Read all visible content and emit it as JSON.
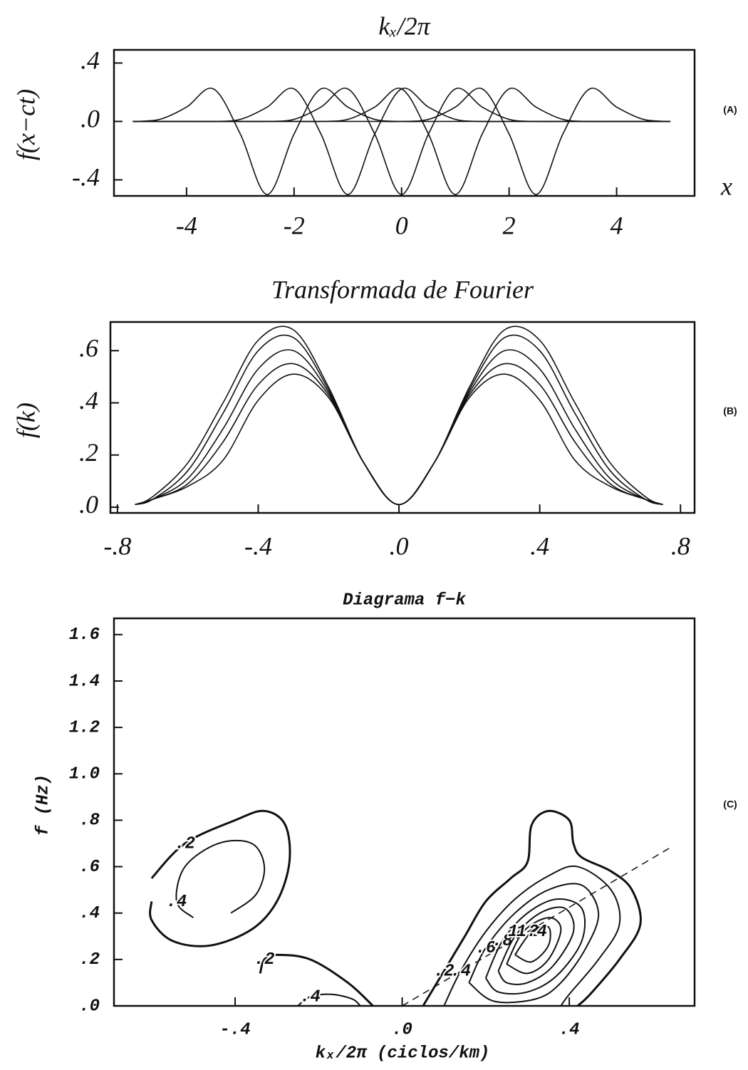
{
  "chart_data": [
    {
      "type": "line",
      "title": "kₓ/2π",
      "x_label": "x",
      "y_label": "f(x−ct)",
      "panel_label": "(A)",
      "color": "#111",
      "x": [
        -5,
        -4.5,
        -4,
        -3.5,
        -3,
        -2.5,
        -2,
        -1.5,
        -1,
        -0.5,
        0,
        0.5,
        1,
        1.5,
        2,
        2.5,
        3,
        3.5,
        4,
        4.5,
        5
      ],
      "series": [
        {
          "values": [
            0,
            0.014,
            0.098,
            0.223,
            -0.086,
            -0.5,
            -0.086,
            0.223,
            0.098,
            0.014,
            0,
            0,
            0,
            0,
            0,
            0,
            0,
            0,
            0,
            0,
            0
          ]
        },
        {
          "values": [
            0,
            0,
            0,
            0,
            0.014,
            0.098,
            0.223,
            -0.086,
            -0.5,
            -0.086,
            0.223,
            0.098,
            0.014,
            0,
            0,
            0,
            0,
            0,
            0,
            0,
            0
          ]
        },
        {
          "values": [
            0,
            0,
            0,
            0,
            0,
            0,
            0.014,
            0.098,
            0.223,
            -0.086,
            -0.5,
            -0.086,
            0.223,
            0.098,
            0.014,
            0,
            0,
            0,
            0,
            0,
            0
          ]
        },
        {
          "values": [
            0,
            0,
            0,
            0,
            0,
            0,
            0,
            0,
            0.014,
            0.098,
            0.223,
            -0.086,
            -0.5,
            -0.086,
            0.223,
            0.098,
            0.014,
            0,
            0,
            0,
            0
          ]
        },
        {
          "values": [
            0,
            0,
            0,
            0,
            0,
            0,
            0,
            0,
            0,
            0,
            0,
            0.014,
            0.098,
            0.223,
            -0.086,
            -0.5,
            -0.086,
            0.223,
            0.098,
            0.014,
            0
          ]
        }
      ],
      "xlim": [
        -5.35,
        5.45
      ],
      "ylim": [
        -0.51,
        0.49
      ],
      "xticks": [
        -4,
        -2,
        0,
        2,
        4
      ],
      "yticks": [
        {
          "value": -0.4,
          "label": "-.4"
        },
        {
          "value": 0,
          "label": ".0"
        },
        {
          "value": 0.4,
          "label": ".4"
        }
      ]
    },
    {
      "type": "line",
      "title": "Transformada de Fourier",
      "y_label": "f(k)",
      "panel_label": "(B)",
      "color": "#111",
      "x": [
        -0.75,
        -0.7,
        -0.6,
        -0.5,
        -0.4,
        -0.3,
        -0.2,
        -0.1,
        0,
        0.1,
        0.2,
        0.3,
        0.4,
        0.5,
        0.6,
        0.7,
        0.75
      ],
      "series": [
        {
          "values": [
            0.01,
            0.04,
            0.17,
            0.4,
            0.64,
            0.68,
            0.46,
            0.17,
            0.01,
            0.17,
            0.46,
            0.68,
            0.64,
            0.4,
            0.17,
            0.04,
            0.01
          ]
        },
        {
          "values": [
            0.01,
            0.03,
            0.14,
            0.36,
            0.6,
            0.65,
            0.45,
            0.17,
            0.01,
            0.17,
            0.45,
            0.65,
            0.6,
            0.36,
            0.14,
            0.03,
            0.01
          ]
        },
        {
          "values": [
            0.01,
            0.03,
            0.11,
            0.3,
            0.53,
            0.6,
            0.44,
            0.17,
            0.01,
            0.17,
            0.44,
            0.6,
            0.53,
            0.3,
            0.11,
            0.03,
            0.01
          ]
        },
        {
          "values": [
            0.01,
            0.03,
            0.09,
            0.25,
            0.47,
            0.55,
            0.43,
            0.17,
            0.01,
            0.17,
            0.43,
            0.55,
            0.47,
            0.25,
            0.09,
            0.03,
            0.01
          ]
        },
        {
          "values": [
            0.01,
            0.03,
            0.08,
            0.18,
            0.41,
            0.51,
            0.42,
            0.17,
            0.01,
            0.17,
            0.42,
            0.51,
            0.41,
            0.18,
            0.08,
            0.03,
            0.01
          ]
        }
      ],
      "xlim": [
        -0.82,
        0.84
      ],
      "ylim": [
        -0.022,
        0.71
      ],
      "xticks": [
        {
          "value": -0.8,
          "label": "-.8"
        },
        {
          "value": -0.4,
          "label": "-.4"
        },
        {
          "value": 0,
          "label": ".0"
        },
        {
          "value": 0.4,
          "label": ".4"
        },
        {
          "value": 0.8,
          "label": ".8"
        }
      ],
      "yticks": [
        {
          "value": 0,
          "label": ".0"
        },
        {
          "value": 0.2,
          "label": ".2"
        },
        {
          "value": 0.4,
          "label": ".4"
        },
        {
          "value": 0.6,
          "label": ".6"
        }
      ]
    },
    {
      "type": "contour",
      "title": "Diagrama f−k",
      "x_label": "kₓ/2π (ciclos/km)",
      "y_label": "f (Hz)",
      "panel_label": "(C)",
      "color": "#111",
      "xlim": [
        -0.69,
        0.7
      ],
      "ylim": [
        0,
        1.67
      ],
      "xticks": [
        {
          "value": -0.4,
          "label": "-.4"
        },
        {
          "value": 0,
          "label": ".0"
        },
        {
          "value": 0.4,
          "label": ".4"
        }
      ],
      "yticks": [
        {
          "value": 0,
          "label": ".0"
        },
        {
          "value": 0.2,
          "label": ".2"
        },
        {
          "value": 0.4,
          "label": ".4"
        },
        {
          "value": 0.6,
          "label": ".6"
        },
        {
          "value": 0.8,
          "label": ".8"
        },
        {
          "value": 1.0,
          "label": "1.0"
        },
        {
          "value": 1.2,
          "label": "1.2"
        },
        {
          "value": 1.4,
          "label": "1.4"
        },
        {
          "value": 1.6,
          "label": "1.6"
        }
      ],
      "contours": [
        {
          "level": 0.2,
          "level_label": ".2",
          "x": [
            -0.6,
            -0.52,
            -0.4,
            -0.33,
            -0.28,
            -0.27,
            -0.3,
            -0.36,
            -0.46,
            -0.55,
            -0.6,
            -0.6
          ],
          "y": [
            0.55,
            0.7,
            0.8,
            0.84,
            0.78,
            0.62,
            0.45,
            0.33,
            0.26,
            0.28,
            0.37,
            0.45
          ]
        },
        {
          "level": 0.4,
          "level_label": ".4",
          "x": [
            -0.5,
            -0.54,
            -0.52,
            -0.44,
            -0.36,
            -0.33,
            -0.35,
            -0.41
          ],
          "y": [
            0.38,
            0.45,
            0.6,
            0.7,
            0.7,
            0.6,
            0.48,
            0.4
          ]
        },
        {
          "level": 0.2,
          "level_label": ".2",
          "x": [
            -0.34,
            -0.33,
            -0.3,
            -0.22,
            -0.13,
            -0.07
          ],
          "y": [
            0.14,
            0.2,
            0.22,
            0.2,
            0.1,
            0
          ]
        },
        {
          "level": 0.4,
          "level_label": ".4",
          "x": [
            -0.25,
            -0.22,
            -0.17,
            -0.12,
            -0.1
          ],
          "y": [
            0,
            0.04,
            0.05,
            0.03,
            0
          ]
        },
        {
          "level": 0.2,
          "level_label": ".2",
          "x": [
            0.05,
            0.1,
            0.15,
            0.2,
            0.26,
            0.3,
            0.31,
            0.35,
            0.4,
            0.41,
            0.43,
            0.5,
            0.55,
            0.57,
            0.52,
            0.45,
            0.42
          ],
          "y": [
            0,
            0.15,
            0.3,
            0.45,
            0.55,
            0.62,
            0.78,
            0.84,
            0.8,
            0.7,
            0.64,
            0.58,
            0.5,
            0.35,
            0.2,
            0.05,
            0
          ]
        },
        {
          "level": 0.4,
          "level_label": ".4",
          "x": [
            0.1,
            0.14,
            0.2,
            0.27,
            0.35,
            0.42,
            0.5,
            0.52,
            0.47,
            0.4,
            0.38
          ],
          "y": [
            0,
            0.15,
            0.32,
            0.46,
            0.56,
            0.6,
            0.5,
            0.35,
            0.2,
            0.05,
            0
          ]
        },
        {
          "level": 0.6,
          "level_label": ".6",
          "x": [
            0.16,
            0.2,
            0.27,
            0.35,
            0.43,
            0.47,
            0.44,
            0.38,
            0.32,
            0.22,
            0.16
          ],
          "y": [
            0.1,
            0.25,
            0.4,
            0.5,
            0.52,
            0.4,
            0.25,
            0.1,
            0.03,
            0.02,
            0.1
          ]
        },
        {
          "level": 0.8,
          "level_label": ".8",
          "x": [
            0.2,
            0.24,
            0.3,
            0.37,
            0.43,
            0.43,
            0.37,
            0.3,
            0.23,
            0.2
          ],
          "y": [
            0.12,
            0.28,
            0.4,
            0.46,
            0.42,
            0.28,
            0.13,
            0.06,
            0.06,
            0.12
          ]
        },
        {
          "level": 1.0,
          "x": [
            0.23,
            0.27,
            0.33,
            0.39,
            0.41,
            0.36,
            0.3,
            0.25,
            0.23
          ],
          "y": [
            0.15,
            0.3,
            0.4,
            0.42,
            0.32,
            0.17,
            0.1,
            0.1,
            0.15
          ]
        },
        {
          "level": 1.2,
          "level_label": "1.2",
          "x": [
            0.25,
            0.29,
            0.35,
            0.38,
            0.35,
            0.3,
            0.25
          ],
          "y": [
            0.18,
            0.32,
            0.38,
            0.33,
            0.2,
            0.14,
            0.18
          ]
        },
        {
          "level": 1.4,
          "level_label": "1.4",
          "x": [
            0.27,
            0.31,
            0.35,
            0.35,
            0.31,
            0.27
          ],
          "y": [
            0.22,
            0.32,
            0.34,
            0.26,
            0.19,
            0.22
          ]
        }
      ],
      "reference_line": {
        "x": [
          0,
          0.64
        ],
        "y": [
          0,
          0.68
        ]
      }
    }
  ]
}
